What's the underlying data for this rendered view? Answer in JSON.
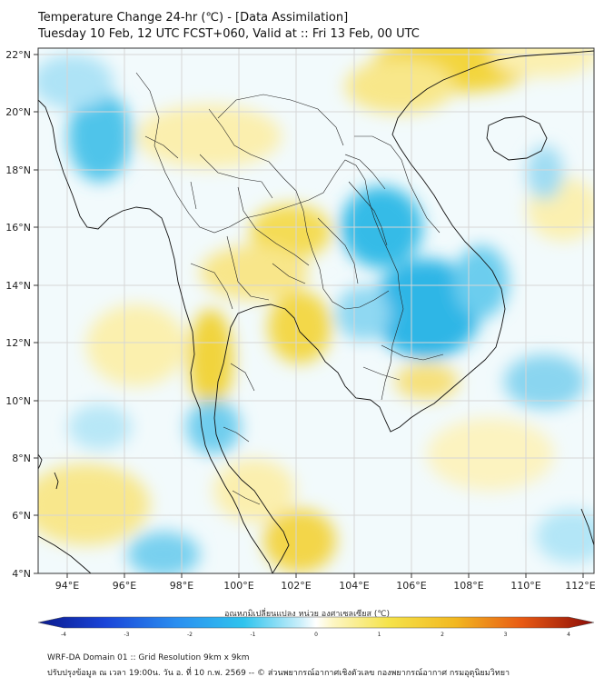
{
  "title": {
    "line1": "Temperature Change 24-hr (℃) - [Data Assimilation]",
    "line2": "Tuesday 10 Feb, 12 UTC FCST+060, Valid at :: Fri 13 Feb, 00 UTC"
  },
  "map": {
    "lon_range": [
      93,
      112.3
    ],
    "lat_range": [
      4,
      22.2
    ],
    "lat_labels": [
      "22°N",
      "20°N",
      "18°N",
      "16°N",
      "14°N",
      "12°N",
      "10°N",
      "8°N",
      "6°N",
      "4°N"
    ],
    "lon_labels": [
      "94°E",
      "96°E",
      "98°E",
      "100°E",
      "102°E",
      "104°E",
      "106°E",
      "108°E",
      "110°E",
      "112°E"
    ]
  },
  "colorbar": {
    "title": "อุณหภูมิเปลี่ยนแปลง หน่วย องศาเซลเซียส (℃)",
    "ticks": [
      "-4",
      "-3",
      "-2",
      "-1",
      "0",
      "1",
      "2",
      "3",
      "4"
    ],
    "range": [
      -4,
      4
    ]
  },
  "footer": {
    "line1": "WRF-DA Domain 01 :: Grid Resolution 9km x 9km",
    "line2": "ปรับปรุงข้อมูล ณ เวลา 19:00น. วัน อ. ที่ 10 ก.พ. 2569 -- © ส่วนพยากรณ์อากาศเชิงตัวเลข กองพยากรณ์อากาศ กรมอุตุนิยมวิทยา"
  },
  "colors": {
    "cold": "#22b8e6",
    "cold_light": "#bfe9f7",
    "warm": "#f0d238",
    "warm_light": "#fbf0ac",
    "coast": "#111111",
    "border": "#222222",
    "grid": "#d6d6d6"
  }
}
